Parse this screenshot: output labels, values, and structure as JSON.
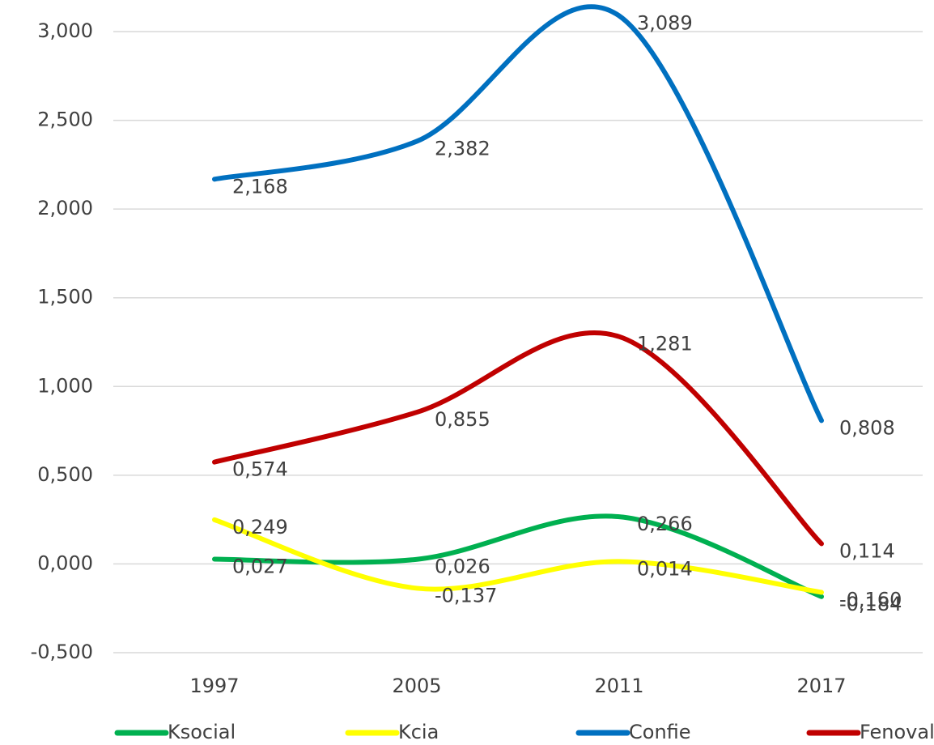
{
  "chart_data": {
    "type": "line",
    "categories": [
      "1997",
      "2005",
      "2011",
      "2017"
    ],
    "series": [
      {
        "name": "Ksocial",
        "color": "#00b050",
        "values": [
          0.027,
          0.026,
          0.266,
          -0.184
        ],
        "value_labels": [
          "0,027",
          "0,026",
          "0,266",
          "-0,184"
        ]
      },
      {
        "name": "Kcia",
        "color": "#ffff00",
        "values": [
          0.249,
          -0.137,
          0.014,
          -0.16
        ],
        "value_labels": [
          "0,249",
          "-0,137",
          "0,014",
          "-0,160"
        ]
      },
      {
        "name": "Confie",
        "color": "#0070c0",
        "values": [
          2.168,
          2.382,
          3.089,
          0.808
        ],
        "value_labels": [
          "2,168",
          "2,382",
          "3,089",
          "0,808"
        ]
      },
      {
        "name": "Fenoval",
        "color": "#c00000",
        "values": [
          0.574,
          0.855,
          1.281,
          0.114
        ],
        "value_labels": [
          "0,574",
          "0,855",
          "1,281",
          "0,114"
        ]
      }
    ],
    "ylim": [
      -0.5,
      3
    ],
    "yticks": [
      {
        "value": -0.5,
        "label": "-0,500"
      },
      {
        "value": 0,
        "label": "0,000"
      },
      {
        "value": 0.5,
        "label": "0,500"
      },
      {
        "value": 1,
        "label": "1,000"
      },
      {
        "value": 1.5,
        "label": "1,500"
      },
      {
        "value": 2,
        "label": "2,000"
      },
      {
        "value": 2.5,
        "label": "2,500"
      },
      {
        "value": 3,
        "label": "3,000"
      }
    ],
    "grid": true,
    "legend": "bottom"
  }
}
